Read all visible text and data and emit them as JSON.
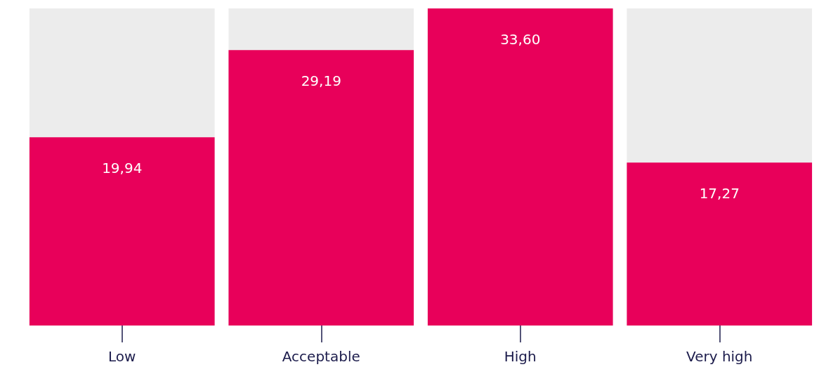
{
  "chart_data": {
    "type": "bar",
    "categories": [
      "Low",
      "Acceptable",
      "High",
      "Very high"
    ],
    "values": [
      19.94,
      29.19,
      33.6,
      17.27
    ],
    "value_labels": [
      "19,94",
      "29,19",
      "33,60",
      "17,27"
    ],
    "color": "#e8005a",
    "ylim": [
      0,
      33.6
    ],
    "tick_labels": "x"
  }
}
